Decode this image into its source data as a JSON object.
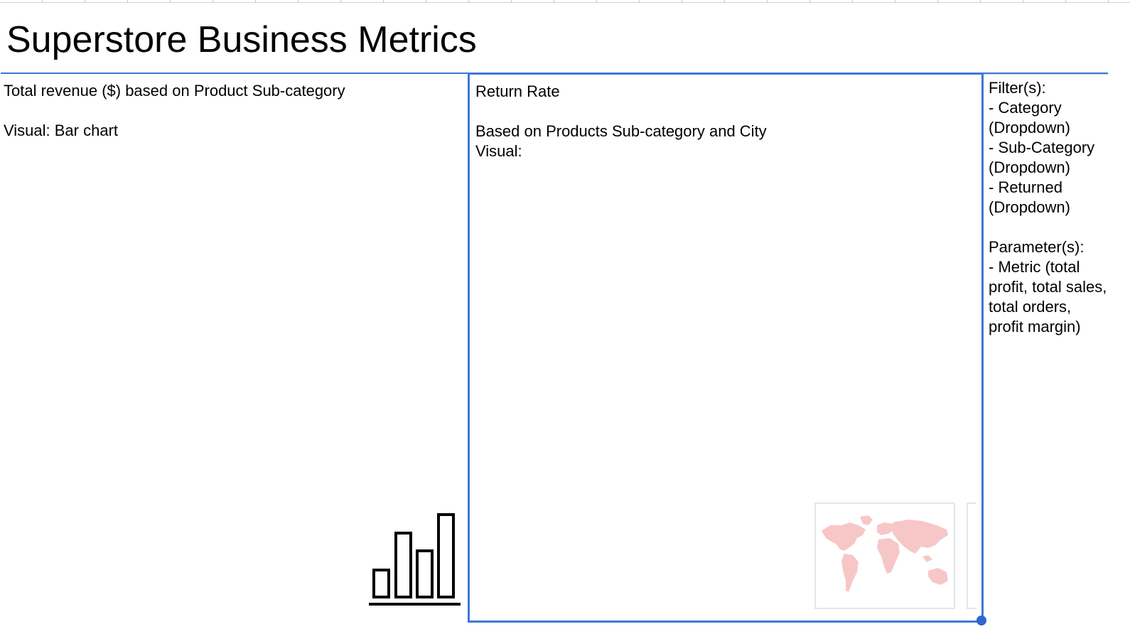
{
  "page": {
    "title": "Superstore Business Metrics"
  },
  "panels": {
    "left": {
      "line1": "Total revenue ($) based on Product Sub-category",
      "line2": "Visual: Bar chart",
      "icon": "bar-chart-icon"
    },
    "middle": {
      "line1": "Return Rate",
      "line2": "Based on Products Sub-category and City",
      "line3": "Visual:",
      "icon": "world-map-icon"
    },
    "right": {
      "filters_heading": "Filter(s):",
      "filters": [
        "- Category (Dropdown)",
        "- Sub-Category (Dropdown)",
        "- Returned (Dropdown)"
      ],
      "parameters_heading": "Parameter(s):",
      "parameters": [
        "- Metric (total profit, total sales, total orders, profit margin)"
      ]
    }
  },
  "colors": {
    "frame_border": "#3d78d8",
    "map_fill": "#f7c7c7",
    "handle": "#2f67d2"
  }
}
